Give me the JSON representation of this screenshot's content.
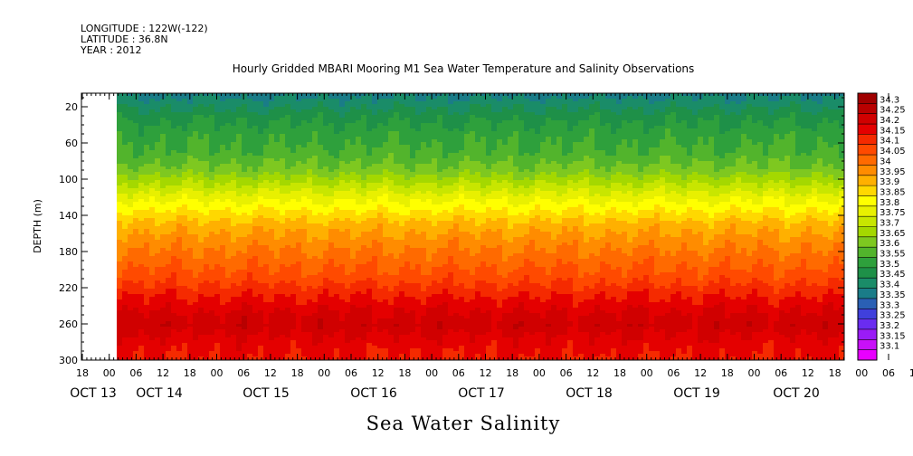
{
  "header": {
    "longitude": "LONGITUDE : 122W(-122)",
    "latitude": "LATITUDE : 36.8N",
    "year": "YEAR : 2012"
  },
  "chart_data": {
    "type": "heatmap",
    "title": "Hourly Gridded MBARI Mooring M1 Sea Water Temperature and Salinity Observations",
    "variable": "Sea Water Salinity",
    "ylabel": "DEPTH (m)",
    "y_range": [
      300,
      5
    ],
    "y_ticks": [
      20,
      60,
      100,
      140,
      180,
      220,
      260,
      300
    ],
    "x_hour_ticks": [
      "18",
      "00",
      "06",
      "12",
      "18",
      "00",
      "06",
      "12",
      "18",
      "00",
      "06",
      "12",
      "18",
      "00",
      "06",
      "12",
      "18",
      "00",
      "06",
      "12",
      "18",
      "00",
      "06",
      "12",
      "18",
      "00",
      "06",
      "12",
      "18",
      "00",
      "06",
      "12",
      "18"
    ],
    "x_day_labels": [
      "OCT 13",
      "OCT 14",
      "OCT 15",
      "OCT 16",
      "OCT 17",
      "OCT 18",
      "OCT 19",
      "OCT 20"
    ],
    "colorbar_levels": [
      "34.3",
      "34.25",
      "34.2",
      "34.15",
      "34.1",
      "34.05",
      "34",
      "33.95",
      "33.9",
      "33.85",
      "33.8",
      "33.75",
      "33.7",
      "33.65",
      "33.6",
      "33.55",
      "33.5",
      "33.45",
      "33.4",
      "33.35",
      "33.3",
      "33.25",
      "33.2",
      "33.15",
      "33.1"
    ],
    "colorbar_colors": [
      "#a00000",
      "#b80000",
      "#d00000",
      "#e40000",
      "#f52a00",
      "#ff4a00",
      "#ff6a00",
      "#ff8c00",
      "#ffb000",
      "#ffd800",
      "#ffff00",
      "#e8f000",
      "#c8e600",
      "#a4d800",
      "#7ec820",
      "#52b42c",
      "#2ea03c",
      "#1e9048",
      "#1a8c68",
      "#1a7c88",
      "#2a60b4",
      "#4040dc",
      "#6a2cf0",
      "#9a1cf6",
      "#c810f8",
      "#e800ff"
    ],
    "depth_profile": [
      {
        "depth": 5,
        "salinity": 33.38
      },
      {
        "depth": 15,
        "salinity": 33.42
      },
      {
        "depth": 30,
        "salinity": 33.48
      },
      {
        "depth": 50,
        "salinity": 33.53
      },
      {
        "depth": 70,
        "salinity": 33.56
      },
      {
        "depth": 90,
        "salinity": 33.62
      },
      {
        "depth": 105,
        "salinity": 33.7
      },
      {
        "depth": 120,
        "salinity": 33.78
      },
      {
        "depth": 135,
        "salinity": 33.85
      },
      {
        "depth": 150,
        "salinity": 33.92
      },
      {
        "depth": 170,
        "salinity": 33.98
      },
      {
        "depth": 190,
        "salinity": 34.03
      },
      {
        "depth": 210,
        "salinity": 34.08
      },
      {
        "depth": 230,
        "salinity": 34.15
      },
      {
        "depth": 250,
        "salinity": 34.21
      },
      {
        "depth": 262,
        "salinity": 34.23
      },
      {
        "depth": 275,
        "salinity": 34.19
      },
      {
        "depth": 290,
        "salinity": 34.16
      },
      {
        "depth": 300,
        "salinity": 34.15
      }
    ]
  }
}
